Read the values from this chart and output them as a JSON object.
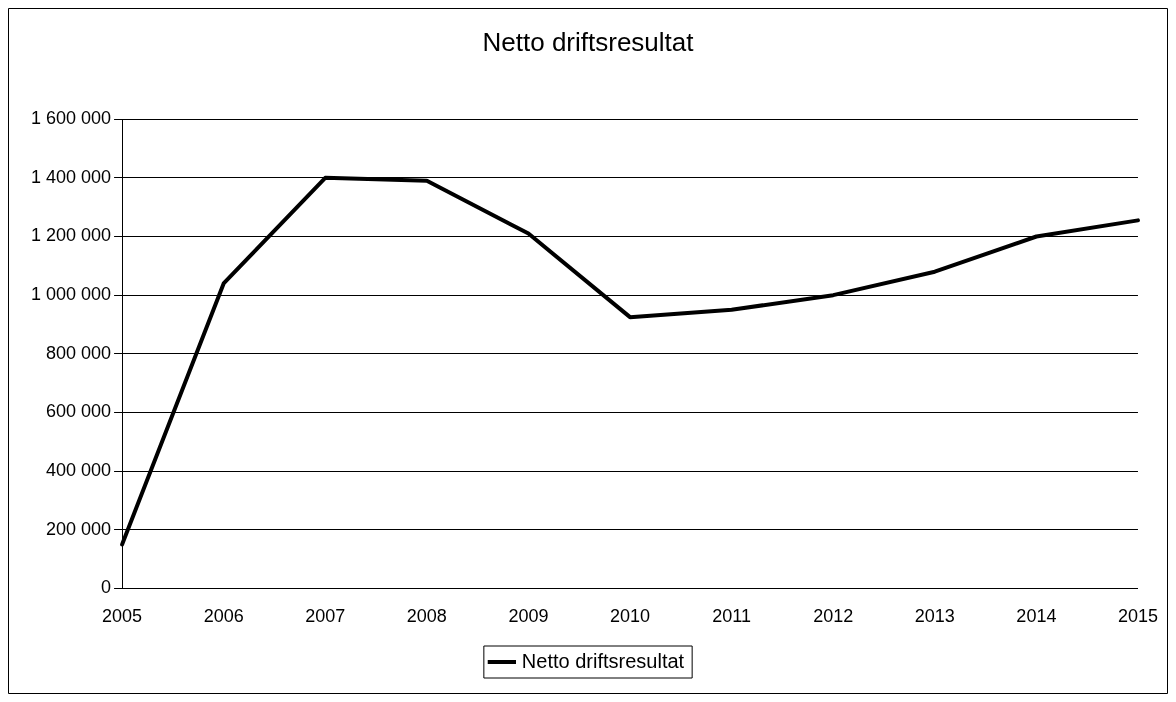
{
  "chart_data": {
    "type": "line",
    "title": "Netto driftsresultat",
    "categories": [
      "2005",
      "2006",
      "2007",
      "2008",
      "2009",
      "2010",
      "2011",
      "2012",
      "2013",
      "2014",
      "2015"
    ],
    "series": [
      {
        "name": "Netto driftsresultat",
        "color": "#000000",
        "values": [
          150000,
          1040000,
          1400000,
          1390000,
          1210000,
          925000,
          950000,
          1000000,
          1080000,
          1200000,
          1255000
        ]
      }
    ],
    "ylim": [
      0,
      1600000
    ],
    "yticks": [
      0,
      {
        "value": 200000,
        "label": "200 000"
      },
      {
        "value": 400000,
        "label": "400 000"
      },
      {
        "value": 600000,
        "label": "600 000"
      },
      {
        "value": 800000,
        "label": "800 000"
      },
      {
        "value": 1000000,
        "label": "1 000 000"
      },
      {
        "value": 1200000,
        "label": "1 200 000"
      },
      {
        "value": 1400000,
        "label": "1 400 000"
      },
      {
        "value": 1600000,
        "label": "1 600 000"
      }
    ],
    "grid": "y",
    "legend": "bottom",
    "marker": "none",
    "line_style": "solid"
  }
}
